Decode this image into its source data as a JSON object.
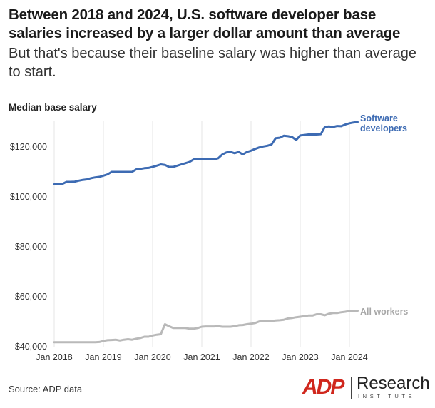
{
  "title": "Between 2018 and 2024, U.S. software developer base salaries increased by a larger dollar amount than average",
  "subtitle": "But that's because their baseline salary was higher than average to start.",
  "source": "Source: ADP data",
  "logo": {
    "brand": "ADP",
    "name": "Research",
    "tagline": "INSTITUTE"
  },
  "colors": {
    "software": "#3d6bb3",
    "all": "#b9b9b9",
    "grid": "#e6e6e6"
  },
  "chart_data": {
    "type": "line",
    "ylabel": "Median base salary",
    "xlabel": "",
    "xlim": [
      "2018-01",
      "2024-02"
    ],
    "ylim": [
      40000,
      130000
    ],
    "grid": true,
    "x_ticks": [
      "Jan 2018",
      "Jan 2019",
      "Jan 2020",
      "Jan 2021",
      "Jan 2022",
      "Jan 2023",
      "Jan 2024"
    ],
    "y_ticks": [
      "$40,000",
      "$60,000",
      "$80,000",
      "$100,000",
      "$120,000"
    ],
    "series": [
      {
        "name": "Software developers",
        "label_lines": [
          "Software",
          "developers"
        ],
        "color": "#3d6bb3",
        "points": [
          [
            "2018-01",
            105000
          ],
          [
            "2018-02",
            105000
          ],
          [
            "2018-03",
            105200
          ],
          [
            "2018-04",
            106000
          ],
          [
            "2018-05",
            106000
          ],
          [
            "2018-06",
            106100
          ],
          [
            "2018-07",
            106500
          ],
          [
            "2018-08",
            106800
          ],
          [
            "2018-09",
            107000
          ],
          [
            "2018-10",
            107500
          ],
          [
            "2018-11",
            107800
          ],
          [
            "2018-12",
            108000
          ],
          [
            "2019-01",
            108500
          ],
          [
            "2019-02",
            109000
          ],
          [
            "2019-03",
            110000
          ],
          [
            "2019-04",
            110000
          ],
          [
            "2019-05",
            110000
          ],
          [
            "2019-06",
            110000
          ],
          [
            "2019-07",
            110000
          ],
          [
            "2019-08",
            110000
          ],
          [
            "2019-09",
            111000
          ],
          [
            "2019-10",
            111200
          ],
          [
            "2019-11",
            111500
          ],
          [
            "2019-12",
            111600
          ],
          [
            "2020-01",
            112000
          ],
          [
            "2020-02",
            112500
          ],
          [
            "2020-03",
            113000
          ],
          [
            "2020-04",
            112800
          ],
          [
            "2020-05",
            112000
          ],
          [
            "2020-06",
            112000
          ],
          [
            "2020-07",
            112500
          ],
          [
            "2020-08",
            113000
          ],
          [
            "2020-09",
            113500
          ],
          [
            "2020-10",
            114000
          ],
          [
            "2020-11",
            115000
          ],
          [
            "2020-12",
            115000
          ],
          [
            "2021-01",
            115000
          ],
          [
            "2021-02",
            115000
          ],
          [
            "2021-03",
            115000
          ],
          [
            "2021-04",
            115000
          ],
          [
            "2021-05",
            115500
          ],
          [
            "2021-06",
            117000
          ],
          [
            "2021-07",
            117800
          ],
          [
            "2021-08",
            118000
          ],
          [
            "2021-09",
            117500
          ],
          [
            "2021-10",
            118000
          ],
          [
            "2021-11",
            117000
          ],
          [
            "2021-12",
            118000
          ],
          [
            "2022-01",
            118500
          ],
          [
            "2022-02",
            119200
          ],
          [
            "2022-03",
            119800
          ],
          [
            "2022-04",
            120200
          ],
          [
            "2022-05",
            120500
          ],
          [
            "2022-06",
            121000
          ],
          [
            "2022-07",
            123500
          ],
          [
            "2022-08",
            123700
          ],
          [
            "2022-09",
            124500
          ],
          [
            "2022-10",
            124300
          ],
          [
            "2022-11",
            124000
          ],
          [
            "2022-12",
            122800
          ],
          [
            "2023-01",
            124600
          ],
          [
            "2023-02",
            124800
          ],
          [
            "2023-03",
            125000
          ],
          [
            "2023-04",
            125000
          ],
          [
            "2023-05",
            125000
          ],
          [
            "2023-06",
            125100
          ],
          [
            "2023-07",
            128000
          ],
          [
            "2023-08",
            128200
          ],
          [
            "2023-09",
            128000
          ],
          [
            "2023-10",
            128400
          ],
          [
            "2023-11",
            128300
          ],
          [
            "2023-12",
            129000
          ],
          [
            "2024-01",
            129500
          ],
          [
            "2024-02",
            129800
          ],
          [
            "2024-03",
            130000
          ]
        ]
      },
      {
        "name": "All workers",
        "label_lines": [
          "All workers"
        ],
        "color": "#b9b9b9",
        "points": [
          [
            "2018-01",
            41800
          ],
          [
            "2018-02",
            41800
          ],
          [
            "2018-03",
            41800
          ],
          [
            "2018-04",
            41800
          ],
          [
            "2018-05",
            41800
          ],
          [
            "2018-06",
            41800
          ],
          [
            "2018-07",
            41800
          ],
          [
            "2018-08",
            41800
          ],
          [
            "2018-09",
            41800
          ],
          [
            "2018-10",
            41800
          ],
          [
            "2018-11",
            41800
          ],
          [
            "2018-12",
            41900
          ],
          [
            "2019-01",
            42300
          ],
          [
            "2019-02",
            42600
          ],
          [
            "2019-03",
            42700
          ],
          [
            "2019-04",
            42800
          ],
          [
            "2019-05",
            42500
          ],
          [
            "2019-06",
            42800
          ],
          [
            "2019-07",
            43000
          ],
          [
            "2019-08",
            42800
          ],
          [
            "2019-09",
            43200
          ],
          [
            "2019-10",
            43500
          ],
          [
            "2019-11",
            44000
          ],
          [
            "2019-12",
            44000
          ],
          [
            "2020-01",
            44500
          ],
          [
            "2020-02",
            44800
          ],
          [
            "2020-03",
            45000
          ],
          [
            "2020-04",
            49000
          ],
          [
            "2020-05",
            48200
          ],
          [
            "2020-06",
            47500
          ],
          [
            "2020-07",
            47500
          ],
          [
            "2020-08",
            47500
          ],
          [
            "2020-09",
            47500
          ],
          [
            "2020-10",
            47200
          ],
          [
            "2020-11",
            47200
          ],
          [
            "2020-12",
            47500
          ],
          [
            "2021-01",
            48000
          ],
          [
            "2021-02",
            48100
          ],
          [
            "2021-03",
            48100
          ],
          [
            "2021-04",
            48100
          ],
          [
            "2021-05",
            48200
          ],
          [
            "2021-06",
            48000
          ],
          [
            "2021-07",
            48000
          ],
          [
            "2021-08",
            48000
          ],
          [
            "2021-09",
            48200
          ],
          [
            "2021-10",
            48600
          ],
          [
            "2021-11",
            48700
          ],
          [
            "2021-12",
            49000
          ],
          [
            "2022-01",
            49200
          ],
          [
            "2022-02",
            49500
          ],
          [
            "2022-03",
            50100
          ],
          [
            "2022-04",
            50200
          ],
          [
            "2022-05",
            50200
          ],
          [
            "2022-06",
            50300
          ],
          [
            "2022-07",
            50500
          ],
          [
            "2022-08",
            50600
          ],
          [
            "2022-09",
            50800
          ],
          [
            "2022-10",
            51300
          ],
          [
            "2022-11",
            51500
          ],
          [
            "2022-12",
            51800
          ],
          [
            "2023-01",
            52000
          ],
          [
            "2023-02",
            52200
          ],
          [
            "2023-03",
            52500
          ],
          [
            "2023-04",
            52500
          ],
          [
            "2023-05",
            53000
          ],
          [
            "2023-06",
            53000
          ],
          [
            "2023-07",
            52600
          ],
          [
            "2023-08",
            53200
          ],
          [
            "2023-09",
            53500
          ],
          [
            "2023-10",
            53500
          ],
          [
            "2023-11",
            53800
          ],
          [
            "2023-12",
            54000
          ],
          [
            "2024-01",
            54300
          ],
          [
            "2024-02",
            54400
          ],
          [
            "2024-03",
            54400
          ]
        ]
      }
    ]
  }
}
